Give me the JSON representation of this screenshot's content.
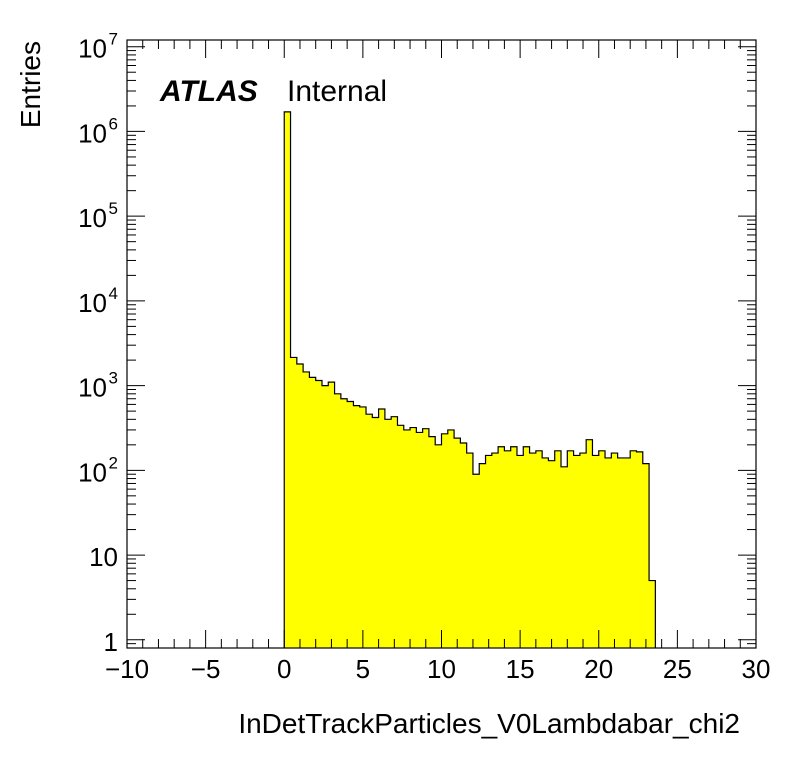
{
  "chart_data": {
    "type": "bar",
    "title": "",
    "xlabel": "InDetTrackParticles_V0Lambdabar_chi2",
    "ylabel": "Entries",
    "atlas_label": "ATLAS",
    "atlas_status": "Internal",
    "xlim": [
      -10,
      30
    ],
    "ylim": [
      0.8,
      12000000
    ],
    "y_scale": "log",
    "grid": false,
    "fill_color": "#ffff00",
    "line_color": "#000000",
    "x_ticks": [
      {
        "value": -10,
        "label": "−10"
      },
      {
        "value": -5,
        "label": "−5"
      },
      {
        "value": 0,
        "label": "0"
      },
      {
        "value": 5,
        "label": "5"
      },
      {
        "value": 10,
        "label": "10"
      },
      {
        "value": 15,
        "label": "15"
      },
      {
        "value": 20,
        "label": "20"
      },
      {
        "value": 25,
        "label": "25"
      },
      {
        "value": 30,
        "label": "30"
      }
    ],
    "y_ticks": [
      {
        "value": 1,
        "base": "1",
        "exp": ""
      },
      {
        "value": 10,
        "base": "10",
        "exp": ""
      },
      {
        "value": 100,
        "base": "10",
        "exp": "2"
      },
      {
        "value": 1000,
        "base": "10",
        "exp": "3"
      },
      {
        "value": 10000,
        "base": "10",
        "exp": "4"
      },
      {
        "value": 100000,
        "base": "10",
        "exp": "5"
      },
      {
        "value": 1000000,
        "base": "10",
        "exp": "6"
      },
      {
        "value": 10000000,
        "base": "10",
        "exp": "7"
      }
    ],
    "bin_start": 0,
    "bin_width": 0.4,
    "values": [
      1700000,
      2150,
      1800,
      1450,
      1250,
      1150,
      1000,
      1100,
      800,
      700,
      650,
      580,
      560,
      460,
      420,
      530,
      400,
      430,
      340,
      300,
      320,
      280,
      310,
      250,
      200,
      270,
      300,
      240,
      210,
      160,
      90,
      120,
      150,
      160,
      190,
      170,
      190,
      150,
      190,
      160,
      170,
      140,
      130,
      170,
      110,
      170,
      150,
      160,
      230,
      150,
      170,
      140,
      160,
      140,
      140,
      170,
      165,
      120,
      5
    ]
  }
}
